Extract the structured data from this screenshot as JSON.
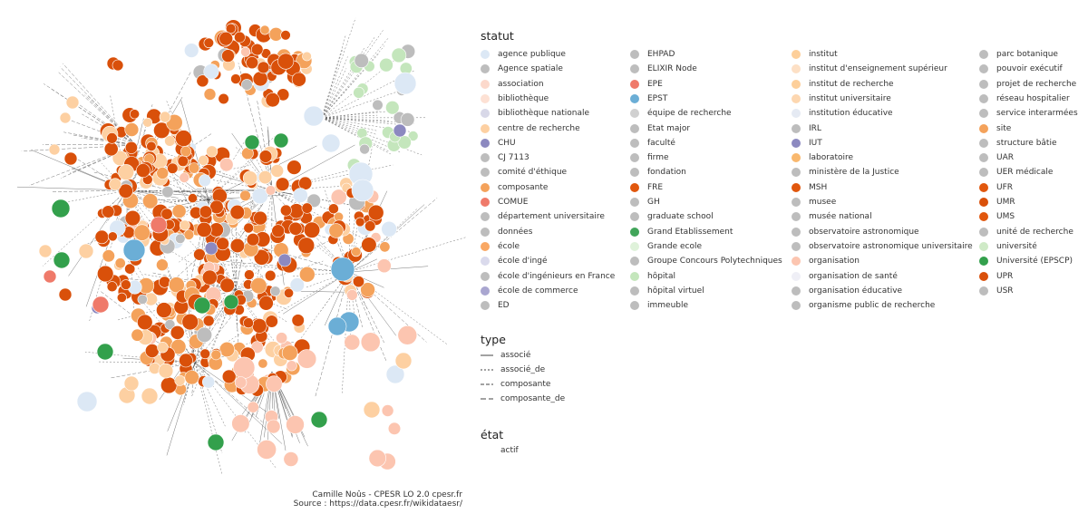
{
  "legend": {
    "statut_title": "statut",
    "type_title": "type",
    "etat_title": "état",
    "statut_columns": [
      [
        {
          "label": "agence publique",
          "color": "#dce8f5"
        },
        {
          "label": "Agence spatiale",
          "color": "#bdbdbd"
        },
        {
          "label": "association",
          "color": "#fcd9cc"
        },
        {
          "label": "bibliothèque",
          "color": "#fde1d4"
        },
        {
          "label": "bibliothèque nationale",
          "color": "#d8d8e8"
        },
        {
          "label": "centre de recherche",
          "color": "#fdd0a2"
        },
        {
          "label": "CHU",
          "color": "#8c89c0"
        },
        {
          "label": "CJ 7113",
          "color": "#bdbdbd"
        },
        {
          "label": "comité d'éthique",
          "color": "#bdbdbd"
        },
        {
          "label": "composante",
          "color": "#f4a25b"
        },
        {
          "label": "COMUE",
          "color": "#ef7a6a"
        },
        {
          "label": "département universitaire",
          "color": "#bdbdbd"
        },
        {
          "label": "données",
          "color": "#bdbdbd"
        },
        {
          "label": "école",
          "color": "#f9a864"
        },
        {
          "label": "école d'ingé",
          "color": "#dadaec"
        },
        {
          "label": "école d'ingénieurs en France",
          "color": "#bdbdbd"
        },
        {
          "label": "école de commerce",
          "color": "#a9a6d0"
        },
        {
          "label": "ED",
          "color": "#bdbdbd"
        }
      ],
      [
        {
          "label": "EHPAD",
          "color": "#bdbdbd"
        },
        {
          "label": "ELIXIR Node",
          "color": "#bdbdbd"
        },
        {
          "label": "EPE",
          "color": "#ef7a6a"
        },
        {
          "label": "EPST",
          "color": "#6baed6"
        },
        {
          "label": "équipe de recherche",
          "color": "#d0d0d0"
        },
        {
          "label": "Etat major",
          "color": "#bdbdbd"
        },
        {
          "label": "faculté",
          "color": "#bdbdbd"
        },
        {
          "label": "firme",
          "color": "#bdbdbd"
        },
        {
          "label": "fondation",
          "color": "#bdbdbd"
        },
        {
          "label": "FRE",
          "color": "#e1570d"
        },
        {
          "label": "GH",
          "color": "#bdbdbd"
        },
        {
          "label": "graduate school",
          "color": "#bdbdbd"
        },
        {
          "label": "Grand Etablissement",
          "color": "#41a55a"
        },
        {
          "label": "Grande ecole",
          "color": "#dff2da"
        },
        {
          "label": "Groupe Concours Polytechniques",
          "color": "#bdbdbd"
        },
        {
          "label": "hôpital",
          "color": "#c4e6bc"
        },
        {
          "label": "hôpital virtuel",
          "color": "#bdbdbd"
        },
        {
          "label": "immeuble",
          "color": "#bdbdbd"
        }
      ],
      [
        {
          "label": "institut",
          "color": "#fdcf9a"
        },
        {
          "label": "institut d'enseignement supérieur",
          "color": "#fde0c5"
        },
        {
          "label": "institut de recherche",
          "color": "#fdcf9a"
        },
        {
          "label": "institut universitaire",
          "color": "#fdd7b0"
        },
        {
          "label": "institution éducative",
          "color": "#e5eaf3"
        },
        {
          "label": "IRL",
          "color": "#bdbdbd"
        },
        {
          "label": "IUT",
          "color": "#8c89c0"
        },
        {
          "label": "laboratoire",
          "color": "#f9b86e"
        },
        {
          "label": "ministère de la Justice",
          "color": "#bdbdbd"
        },
        {
          "label": "MSH",
          "color": "#e1570d"
        },
        {
          "label": "musee",
          "color": "#bdbdbd"
        },
        {
          "label": "musée national",
          "color": "#bdbdbd"
        },
        {
          "label": "observatoire astronomique",
          "color": "#bdbdbd"
        },
        {
          "label": "observatoire astronomique universitaire",
          "color": "#bdbdbd"
        },
        {
          "label": "organisation",
          "color": "#fcc5b0"
        },
        {
          "label": "organisation de santé",
          "color": "#efeff6"
        },
        {
          "label": "organisation éducative",
          "color": "#bdbdbd"
        },
        {
          "label": "organisme public de recherche",
          "color": "#bdbdbd"
        }
      ],
      [
        {
          "label": "parc botanique",
          "color": "#bdbdbd"
        },
        {
          "label": "pouvoir exécutif",
          "color": "#bdbdbd"
        },
        {
          "label": "projet de recherche",
          "color": "#bdbdbd"
        },
        {
          "label": "réseau hospitalier",
          "color": "#bdbdbd"
        },
        {
          "label": "service interarmées",
          "color": "#bdbdbd"
        },
        {
          "label": "site",
          "color": "#f4a25b"
        },
        {
          "label": "structure bâtie",
          "color": "#bdbdbd"
        },
        {
          "label": "UAR",
          "color": "#bdbdbd"
        },
        {
          "label": "UER médicale",
          "color": "#bdbdbd"
        },
        {
          "label": "UFR",
          "color": "#e1570d"
        },
        {
          "label": "UMR",
          "color": "#d9500a"
        },
        {
          "label": "UMS",
          "color": "#e1570d"
        },
        {
          "label": "unité de recherche",
          "color": "#bdbdbd"
        },
        {
          "label": "université",
          "color": "#cfeac7"
        },
        {
          "label": "Université (EPSCP)",
          "color": "#33a04c"
        },
        {
          "label": "UPR",
          "color": "#d9500a"
        },
        {
          "label": "USR",
          "color": "#bdbdbd"
        }
      ]
    ],
    "types": [
      {
        "label": "associé",
        "dash": "none"
      },
      {
        "label": "associé_de",
        "dash": "2,2"
      },
      {
        "label": "composante",
        "dash": "4,2"
      },
      {
        "label": "composante_de",
        "dash": "6,3"
      }
    ],
    "etats": [
      {
        "label": "actif"
      }
    ]
  },
  "credits": {
    "line1": "Camille Noûs - CPESR LO 2.0 cpesr.fr",
    "line2": "Source : https://data.cpesr.fr/wikidataesr/"
  },
  "graph": {
    "palette": {
      "umr": "#d9500a",
      "orange": "#f4a25b",
      "peach": "#fdd0a2",
      "pink": "#fcc5b0",
      "grey": "#bdbdbd",
      "green": "#33a04c",
      "lightgreen": "#c4e6bc",
      "blue": "#6baed6",
      "lightblue": "#dce8f5",
      "purple": "#8c89c0",
      "red": "#ef7a6a",
      "edge": "#555555"
    }
  }
}
